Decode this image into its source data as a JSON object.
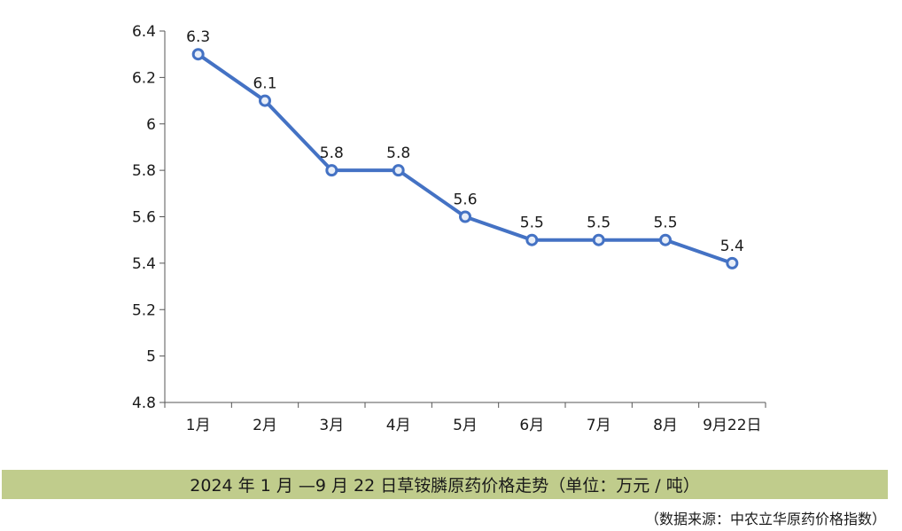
{
  "chart_data": {
    "type": "line",
    "categories": [
      "1月",
      "2月",
      "3月",
      "4月",
      "5月",
      "6月",
      "7月",
      "8月",
      "9月22日"
    ],
    "series": [
      {
        "values": [
          6.3,
          6.1,
          5.8,
          5.8,
          5.6,
          5.5,
          5.5,
          5.5,
          5.4
        ],
        "color": "#4472c4"
      }
    ],
    "data_labels": [
      "6.3",
      "6.1",
      "5.8",
      "5.8",
      "5.6",
      "5.5",
      "5.5",
      "5.5",
      "5.4"
    ],
    "ylim": [
      4.8,
      6.4
    ],
    "yticks": [
      "4.8",
      "5",
      "5.2",
      "5.4",
      "5.6",
      "5.8",
      "6",
      "6.2",
      "6.4"
    ],
    "grid": false,
    "legend": "none"
  },
  "caption": {
    "text": "2024 年 1 月 —9 月 22 日草铵膦原药价格走势（单位：万元 / 吨）",
    "background": "#c0cc8c"
  },
  "source": "（数据来源：中农立华原药价格指数）"
}
